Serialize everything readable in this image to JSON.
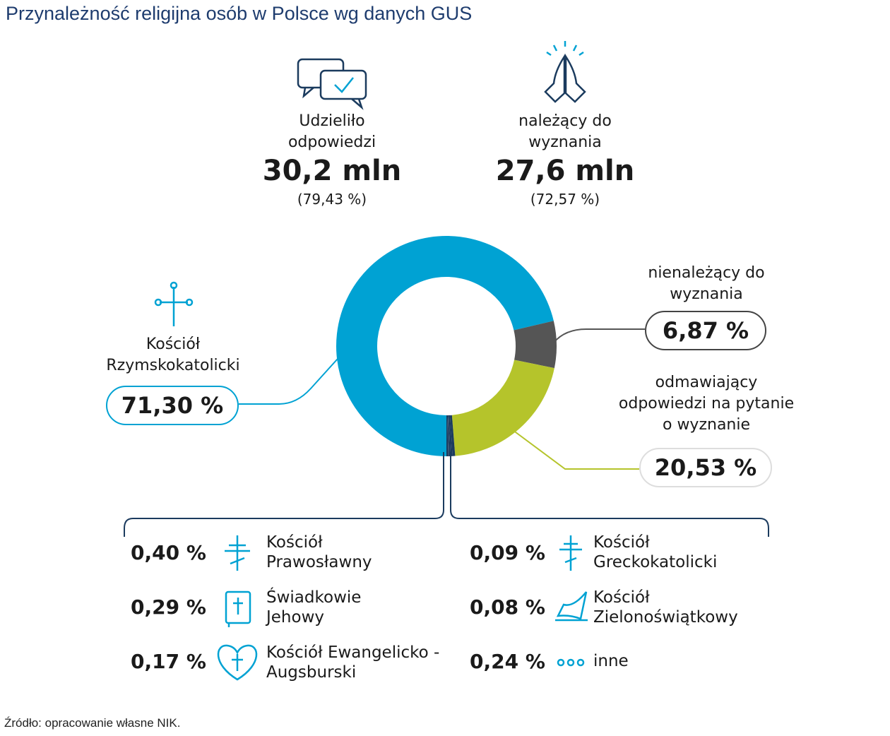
{
  "chart_data": {
    "type": "pie",
    "title": "Przynależność religijna osób w Polsce wg danych GUS",
    "categories": [
      "Kościół Rzymskokatolicki",
      "nienależący do wyznania",
      "odmawiający odpowiedzi na pytanie o wyznanie",
      "Kościół Prawosławny",
      "Świadkowie Jehowy",
      "Kościół Ewangelicko -Augsburski",
      "Kościół Greckokatolicki",
      "Kościół Zielonoświątkowy",
      "inne"
    ],
    "values": [
      71.3,
      6.87,
      20.53,
      0.4,
      0.29,
      0.17,
      0.09,
      0.08,
      0.24
    ],
    "value_labels": [
      "71,30 %",
      "6,87 %",
      "20,53 %",
      "0,40 %",
      "0,29 %",
      "0,17 %",
      "0,09 %",
      "0,08 %",
      "0,24 %"
    ],
    "colors": [
      "#00a2d3",
      "#555555",
      "#b5c42b",
      "#1b3b5e",
      "#1b3b5e",
      "#1b3b5e",
      "#1b3b5e",
      "#1b3b5e",
      "#1b3b5e"
    ],
    "stats": [
      {
        "label": "Udzieliło odpowiedzi",
        "value": "30,2 mln",
        "share": "(79,43 %)"
      },
      {
        "label": "należący do wyznania",
        "value": "27,6 mln",
        "share": "(72,57 %)"
      }
    ],
    "source": "Źródło: opracowanie własne NIK."
  }
}
